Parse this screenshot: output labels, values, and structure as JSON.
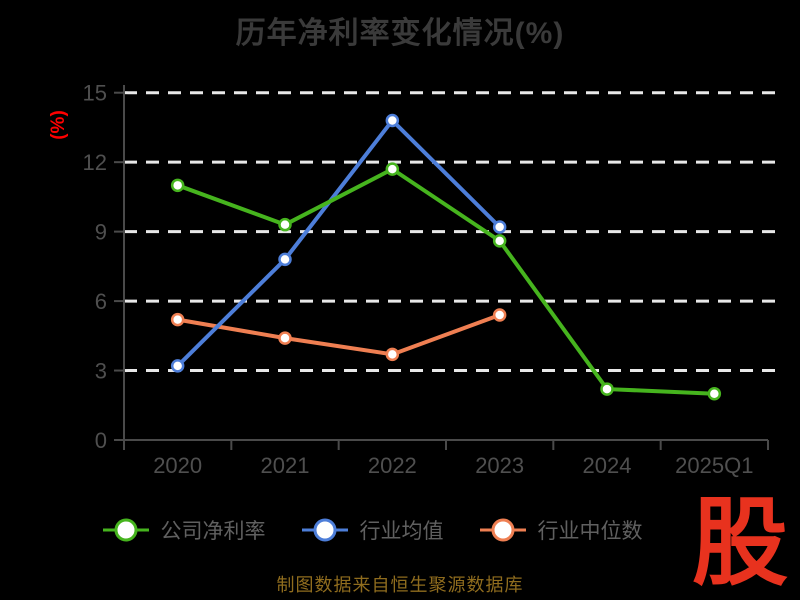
{
  "title": "历年净利率变化情况(%)",
  "source_note": "制图数据来自恒生聚源数据库",
  "watermark_text": "股",
  "colors": {
    "background": "#000000",
    "title": "#3a3a3a",
    "axis": "#4a4a4a",
    "tick_label": "#4f4f4f",
    "gridline": "#e8e8e8",
    "legend_text": "#606060",
    "unit_label": "#ff0000",
    "source_note": "#8f6c1e",
    "watermark": "#e8321e",
    "marker_fill": "#ffffff"
  },
  "chart_data": {
    "type": "line",
    "title": "历年净利率变化情况(%)",
    "categories": [
      "2020",
      "2021",
      "2022",
      "2023",
      "2024",
      "2025Q1"
    ],
    "series": [
      {
        "key": "company-net-margin",
        "name": "公司净利率",
        "color": "#46b41e",
        "values": [
          11.0,
          9.3,
          11.7,
          8.6,
          2.2,
          2.0
        ]
      },
      {
        "key": "industry-mean",
        "name": "行业均值",
        "color": "#4d7ed9",
        "values": [
          3.2,
          7.8,
          13.8,
          9.2,
          null,
          null
        ]
      },
      {
        "key": "industry-median",
        "name": "行业中位数",
        "color": "#ef7f52",
        "values": [
          5.2,
          4.4,
          3.7,
          5.4,
          null,
          null
        ]
      }
    ],
    "xlabel": "",
    "ylabel": "(%)",
    "ylim": [
      0,
      15
    ],
    "yticks": [
      0,
      3,
      6,
      9,
      12,
      15
    ],
    "grid": true,
    "grid_style": "dashed",
    "legend_position": "bottom"
  }
}
